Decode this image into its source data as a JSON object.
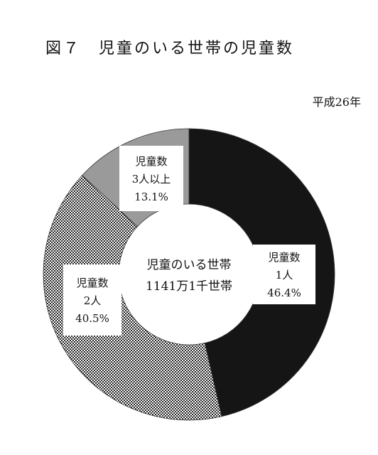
{
  "page": {
    "title": "図７　児童のいる世帯の児童数",
    "year_label": "平成26年"
  },
  "chart_data": {
    "type": "pie",
    "variant": "donut",
    "center_label": [
      "児童のいる世帯",
      "1141万1千世帯"
    ],
    "slices": [
      {
        "label_lines": [
          "児童数",
          "1人",
          "46.4%"
        ],
        "value": 46.4,
        "fill": "solid-black"
      },
      {
        "label_lines": [
          "児童数",
          "2人",
          "40.5%"
        ],
        "value": 40.5,
        "fill": "checker-pattern"
      },
      {
        "label_lines": [
          "児童数",
          "3人以上",
          "13.1%"
        ],
        "value": 13.1,
        "fill": "gray"
      }
    ],
    "colors": {
      "solid": "#151515",
      "checker_dark": "#222222",
      "checker_light": "#ffffff",
      "gray": "#9a9a9a"
    }
  }
}
